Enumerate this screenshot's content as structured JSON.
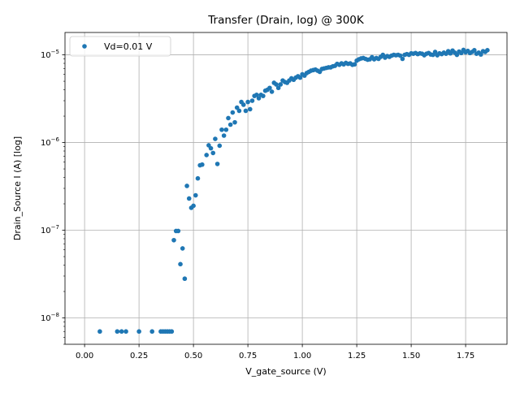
{
  "chart_data": {
    "type": "scatter",
    "title": "Transfer (Drain, log) @ 300K",
    "xlabel": "V_gate_source (V)",
    "ylabel": "Drain_Source I (A) [log]",
    "xlim": [
      -0.09,
      1.94
    ],
    "ylim": [
      5e-09,
      1.8e-05
    ],
    "yscale": "log",
    "grid": true,
    "legend": {
      "position": "top-left",
      "entries": [
        "Vd=0.01 V"
      ]
    },
    "x_ticks": [
      {
        "value": 0.0,
        "label": "0.00"
      },
      {
        "value": 0.25,
        "label": "0.25"
      },
      {
        "value": 0.5,
        "label": "0.50"
      },
      {
        "value": 0.75,
        "label": "0.75"
      },
      {
        "value": 1.0,
        "label": "1.00"
      },
      {
        "value": 1.25,
        "label": "1.25"
      },
      {
        "value": 1.5,
        "label": "1.50"
      },
      {
        "value": 1.75,
        "label": "1.75"
      }
    ],
    "y_ticks": [
      {
        "value": 1e-08,
        "base": "10",
        "exp": "−8"
      },
      {
        "value": 1e-07,
        "base": "10",
        "exp": "−7"
      },
      {
        "value": 1e-06,
        "base": "10",
        "exp": "−6"
      },
      {
        "value": 1e-05,
        "base": "10",
        "exp": "−5"
      }
    ],
    "marker_color": "#1f77b4",
    "series": [
      {
        "name": "Vd=0.01 V",
        "points": [
          [
            0.07,
            7e-09
          ],
          [
            0.15,
            7e-09
          ],
          [
            0.17,
            7e-09
          ],
          [
            0.19,
            7e-09
          ],
          [
            0.25,
            7e-09
          ],
          [
            0.31,
            7e-09
          ],
          [
            0.35,
            7e-09
          ],
          [
            0.36,
            7e-09
          ],
          [
            0.37,
            7e-09
          ],
          [
            0.38,
            7e-09
          ],
          [
            0.39,
            7e-09
          ],
          [
            0.4,
            7e-09
          ],
          [
            0.41,
            7.7e-08
          ],
          [
            0.42,
            9.8e-08
          ],
          [
            0.43,
            9.8e-08
          ],
          [
            0.44,
            4.1e-08
          ],
          [
            0.45,
            6.2e-08
          ],
          [
            0.46,
            2.8e-08
          ],
          [
            0.47,
            3.2e-07
          ],
          [
            0.48,
            2.3e-07
          ],
          [
            0.49,
            1.8e-07
          ],
          [
            0.5,
            1.9e-07
          ],
          [
            0.51,
            2.5e-07
          ],
          [
            0.52,
            3.9e-07
          ],
          [
            0.53,
            5.5e-07
          ],
          [
            0.54,
            5.6e-07
          ],
          [
            0.56,
            7.2e-07
          ],
          [
            0.57,
            9.3e-07
          ],
          [
            0.58,
            8.6e-07
          ],
          [
            0.59,
            7.6e-07
          ],
          [
            0.6,
            1.1e-06
          ],
          [
            0.61,
            5.7e-07
          ],
          [
            0.62,
            9.2e-07
          ],
          [
            0.63,
            1.4e-06
          ],
          [
            0.64,
            1.2e-06
          ],
          [
            0.65,
            1.4e-06
          ],
          [
            0.66,
            1.9e-06
          ],
          [
            0.67,
            1.6e-06
          ],
          [
            0.68,
            2.2e-06
          ],
          [
            0.69,
            1.7e-06
          ],
          [
            0.7,
            2.5e-06
          ],
          [
            0.71,
            2.3e-06
          ],
          [
            0.72,
            2.9e-06
          ],
          [
            0.73,
            2.7e-06
          ],
          [
            0.74,
            2.3e-06
          ],
          [
            0.75,
            2.9e-06
          ],
          [
            0.76,
            2.4e-06
          ],
          [
            0.77,
            3e-06
          ],
          [
            0.78,
            3.4e-06
          ],
          [
            0.79,
            3.5e-06
          ],
          [
            0.8,
            3.2e-06
          ],
          [
            0.81,
            3.5e-06
          ],
          [
            0.82,
            3.4e-06
          ],
          [
            0.83,
            3.9e-06
          ],
          [
            0.84,
            4e-06
          ],
          [
            0.85,
            4.2e-06
          ],
          [
            0.86,
            3.8e-06
          ],
          [
            0.87,
            4.8e-06
          ],
          [
            0.88,
            4.6e-06
          ],
          [
            0.89,
            4.2e-06
          ],
          [
            0.9,
            4.6e-06
          ],
          [
            0.91,
            5.1e-06
          ],
          [
            0.92,
            4.9e-06
          ],
          [
            0.93,
            4.8e-06
          ],
          [
            0.94,
            5.1e-06
          ],
          [
            0.95,
            5.4e-06
          ],
          [
            0.96,
            5.2e-06
          ],
          [
            0.97,
            5.5e-06
          ],
          [
            0.98,
            5.7e-06
          ],
          [
            0.99,
            5.5e-06
          ],
          [
            1.0,
            6e-06
          ],
          [
            1.01,
            5.8e-06
          ],
          [
            1.02,
            6.2e-06
          ],
          [
            1.03,
            6.4e-06
          ],
          [
            1.04,
            6.6e-06
          ],
          [
            1.05,
            6.7e-06
          ],
          [
            1.06,
            6.8e-06
          ],
          [
            1.07,
            6.6e-06
          ],
          [
            1.08,
            6.4e-06
          ],
          [
            1.09,
            6.9e-06
          ],
          [
            1.1,
            7e-06
          ],
          [
            1.11,
            7.1e-06
          ],
          [
            1.12,
            7.2e-06
          ],
          [
            1.13,
            7.2e-06
          ],
          [
            1.14,
            7.4e-06
          ],
          [
            1.15,
            7.5e-06
          ],
          [
            1.16,
            7.9e-06
          ],
          [
            1.17,
            7.7e-06
          ],
          [
            1.18,
            8e-06
          ],
          [
            1.19,
            7.8e-06
          ],
          [
            1.2,
            8.1e-06
          ],
          [
            1.21,
            7.9e-06
          ],
          [
            1.22,
            8e-06
          ],
          [
            1.23,
            7.7e-06
          ],
          [
            1.24,
            7.8e-06
          ],
          [
            1.25,
            8.6e-06
          ],
          [
            1.26,
            8.9e-06
          ],
          [
            1.27,
            9.1e-06
          ],
          [
            1.28,
            9.2e-06
          ],
          [
            1.29,
            9e-06
          ],
          [
            1.3,
            8.8e-06
          ],
          [
            1.31,
            8.9e-06
          ],
          [
            1.32,
            9.4e-06
          ],
          [
            1.33,
            8.9e-06
          ],
          [
            1.34,
            9.2e-06
          ],
          [
            1.35,
            9e-06
          ],
          [
            1.36,
            9.5e-06
          ],
          [
            1.37,
            1e-05
          ],
          [
            1.38,
            9.3e-06
          ],
          [
            1.39,
            9.7e-06
          ],
          [
            1.4,
            9.5e-06
          ],
          [
            1.41,
            9.8e-06
          ],
          [
            1.42,
            1e-05
          ],
          [
            1.43,
            9.9e-06
          ],
          [
            1.44,
            1e-05
          ],
          [
            1.45,
            9.8e-06
          ],
          [
            1.46,
            9e-06
          ],
          [
            1.47,
            1e-05
          ],
          [
            1.48,
            1.02e-05
          ],
          [
            1.49,
            1e-05
          ],
          [
            1.5,
            1.04e-05
          ],
          [
            1.51,
            1.03e-05
          ],
          [
            1.52,
            1.05e-05
          ],
          [
            1.53,
            1.02e-05
          ],
          [
            1.54,
            1.04e-05
          ],
          [
            1.55,
            1.03e-05
          ],
          [
            1.56,
            9.9e-06
          ],
          [
            1.57,
            1.03e-05
          ],
          [
            1.58,
            1.05e-05
          ],
          [
            1.59,
            1.01e-05
          ],
          [
            1.6,
            1e-05
          ],
          [
            1.61,
            1.08e-05
          ],
          [
            1.62,
            9.9e-06
          ],
          [
            1.63,
            1.04e-05
          ],
          [
            1.64,
            1.02e-05
          ],
          [
            1.65,
            1.06e-05
          ],
          [
            1.66,
            1.03e-05
          ],
          [
            1.67,
            1.1e-05
          ],
          [
            1.68,
            1.04e-05
          ],
          [
            1.69,
            1.12e-05
          ],
          [
            1.7,
            1.06e-05
          ],
          [
            1.71,
            1e-05
          ],
          [
            1.72,
            1.09e-05
          ],
          [
            1.73,
            1.05e-05
          ],
          [
            1.74,
            1.14e-05
          ],
          [
            1.75,
            1.07e-05
          ],
          [
            1.76,
            1.11e-05
          ],
          [
            1.77,
            1.05e-05
          ],
          [
            1.78,
            1.08e-05
          ],
          [
            1.79,
            1.13e-05
          ],
          [
            1.8,
            1.03e-05
          ],
          [
            1.81,
            1.06e-05
          ],
          [
            1.82,
            1.01e-05
          ],
          [
            1.83,
            1.1e-05
          ],
          [
            1.84,
            1.08e-05
          ],
          [
            1.85,
            1.13e-05
          ]
        ]
      }
    ]
  }
}
